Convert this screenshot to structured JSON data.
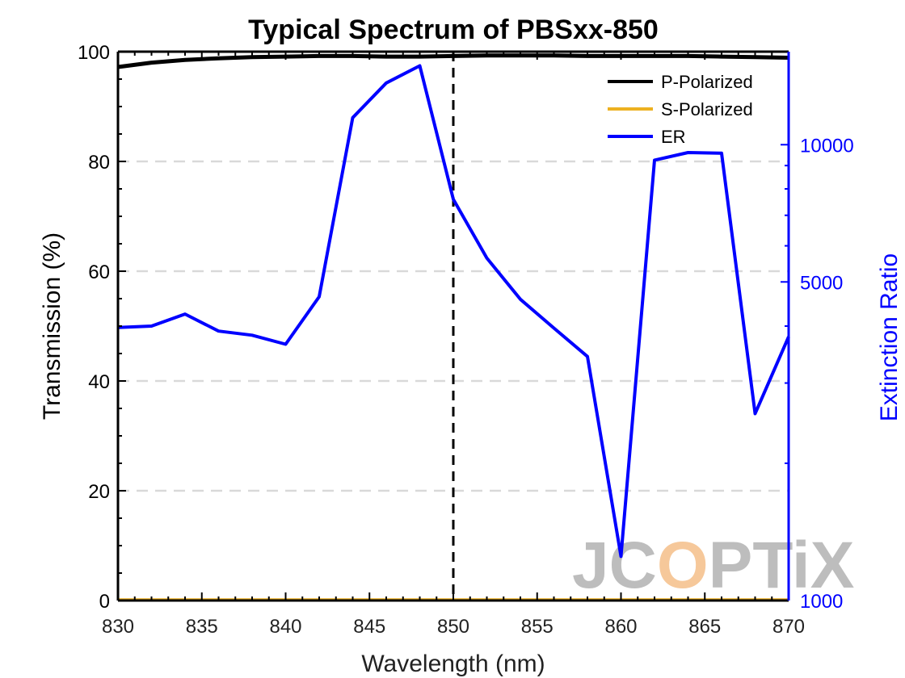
{
  "chart_data": {
    "type": "line",
    "title": "Typical Spectrum of PBSxx-850",
    "xlabel": "Wavelength (nm)",
    "ylabel_left": "Transmission (%)",
    "ylabel_right": "Extinction Ratio",
    "xlim": [
      830,
      870
    ],
    "ylim_left": [
      0,
      100
    ],
    "ylim_right": [
      1000,
      16000
    ],
    "right_axis_scale": "log",
    "x_ticks": [
      830,
      835,
      840,
      845,
      850,
      855,
      860,
      865,
      870
    ],
    "y_left_ticks": [
      0,
      20,
      40,
      60,
      80,
      100
    ],
    "y_right_ticks": [
      1000,
      5000,
      10000
    ],
    "grid": "horizontal dashed at left-axis ticks",
    "reference_line": {
      "x": 850,
      "style": "dashed",
      "color": "#000000"
    },
    "legend_position": "top-right",
    "colors": {
      "p_polarized": "#000000",
      "s_polarized": "#EDB120",
      "er": "#0000FF",
      "right_axis": "#0000FF"
    },
    "series": [
      {
        "name": "P-Polarized",
        "axis": "left",
        "x": [
          830,
          832,
          834,
          836,
          838,
          840,
          842,
          844,
          846,
          848,
          850,
          852,
          854,
          856,
          858,
          860,
          862,
          864,
          866,
          868,
          870
        ],
        "values": [
          97.2,
          98.0,
          98.5,
          98.8,
          99.0,
          99.1,
          99.2,
          99.2,
          99.1,
          99.1,
          99.2,
          99.3,
          99.3,
          99.3,
          99.2,
          99.2,
          99.2,
          99.2,
          99.1,
          99.0,
          98.9
        ]
      },
      {
        "name": "S-Polarized",
        "axis": "left",
        "x": [
          830,
          835,
          840,
          845,
          850,
          855,
          860,
          865,
          870
        ],
        "values": [
          0.1,
          0.1,
          0.1,
          0.1,
          0.1,
          0.1,
          0.1,
          0.1,
          0.1
        ]
      },
      {
        "name": "ER",
        "axis": "right",
        "x": [
          830,
          832,
          834,
          836,
          838,
          840,
          842,
          844,
          846,
          848,
          850,
          852,
          854,
          856,
          858,
          860,
          862,
          864,
          866,
          868,
          870
        ],
        "values": [
          3970,
          4000,
          4250,
          3900,
          3820,
          3650,
          4640,
          11460,
          13660,
          14900,
          7590,
          5640,
          4580,
          3960,
          3430,
          1250,
          9250,
          9610,
          9580,
          2570,
          3790
        ]
      }
    ]
  },
  "watermark": {
    "text_a": "JC",
    "text_b": "O",
    "text_c": "PTiX",
    "color_gray": "#BDBDBD",
    "color_peach": "#F6C89A"
  }
}
